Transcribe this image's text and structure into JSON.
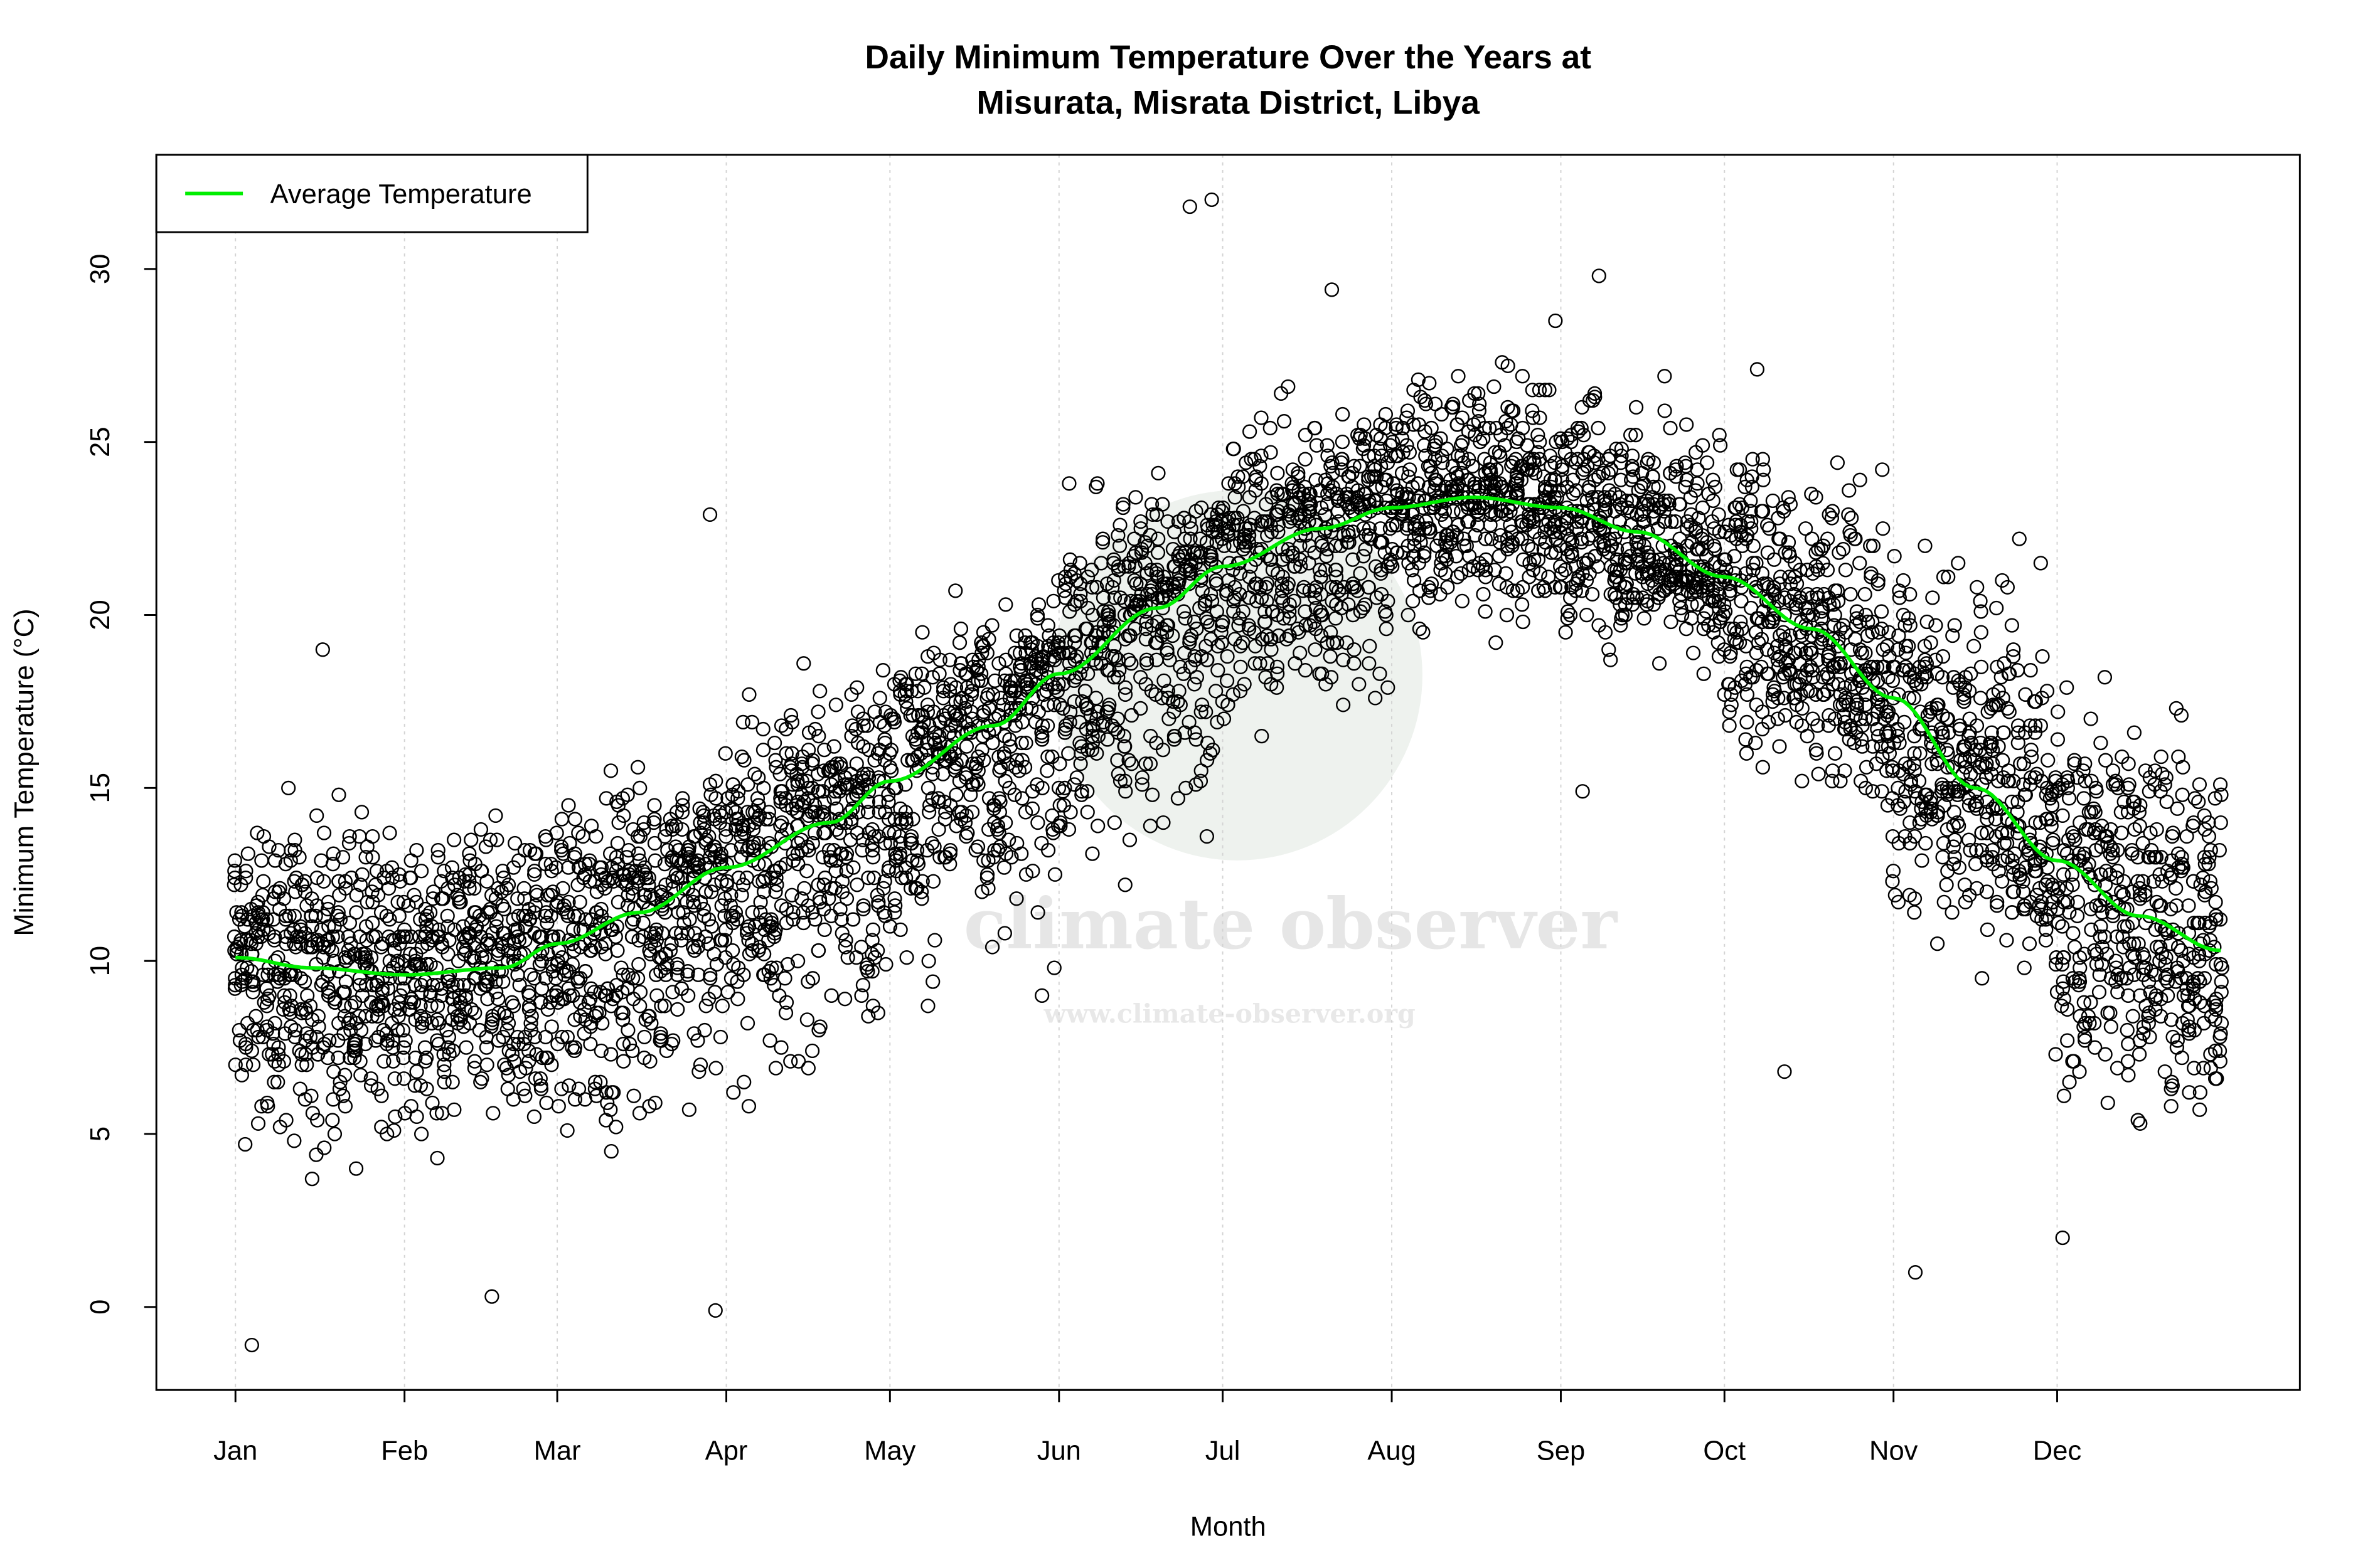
{
  "chart_data": {
    "type": "scatter",
    "title_line1": "Daily Minimum Temperature Over the Years at",
    "title_line2": "Misurata, Misrata District, Libya",
    "xlabel": "Month",
    "ylabel": "Minimum Temperature (°C)",
    "x_unit": "day of year",
    "xlim": [
      -13.5,
      379.5
    ],
    "ylim": [
      -2.4,
      33.3
    ],
    "grid": "vertical dotted at month ticks",
    "x_ticks": [
      {
        "label": "Jan",
        "day": 1
      },
      {
        "label": "Feb",
        "day": 32
      },
      {
        "label": "Mar",
        "day": 60
      },
      {
        "label": "Apr",
        "day": 91
      },
      {
        "label": "May",
        "day": 121
      },
      {
        "label": "Jun",
        "day": 152
      },
      {
        "label": "Jul",
        "day": 182
      },
      {
        "label": "Aug",
        "day": 213
      },
      {
        "label": "Sep",
        "day": 244
      },
      {
        "label": "Oct",
        "day": 274
      },
      {
        "label": "Nov",
        "day": 305
      },
      {
        "label": "Dec",
        "day": 335
      }
    ],
    "y_ticks": [
      0,
      5,
      10,
      15,
      20,
      25,
      30
    ],
    "legend": {
      "placement": "top-left",
      "entries": [
        {
          "label": "Average Temperature",
          "color": "#00ee00"
        }
      ]
    },
    "average_line": {
      "name": "Average Temperature",
      "color": "#00ee00",
      "x": [
        1,
        15,
        32,
        50,
        60,
        75,
        91,
        110,
        121,
        140,
        152,
        170,
        182,
        200,
        213,
        228,
        244,
        258,
        274,
        290,
        305,
        320,
        335,
        350,
        365
      ],
      "y": [
        10.1,
        9.8,
        9.6,
        9.8,
        10.5,
        11.4,
        12.7,
        14.0,
        15.2,
        16.8,
        18.3,
        20.2,
        21.4,
        22.5,
        23.1,
        23.4,
        23.1,
        22.4,
        21.1,
        19.6,
        17.6,
        15.0,
        12.9,
        11.3,
        10.3
      ]
    },
    "scatter_marker": "open circle, black",
    "scatter_typical_range_by_month": {
      "months": [
        "Jan",
        "Feb",
        "Mar",
        "Apr",
        "May",
        "Jun",
        "Jul",
        "Aug",
        "Sep",
        "Oct",
        "Nov",
        "Dec"
      ],
      "low": [
        3,
        3,
        3,
        5,
        8,
        11,
        15,
        19,
        18,
        14,
        9,
        4
      ],
      "high": [
        15.5,
        15,
        16.5,
        19,
        21,
        25,
        27,
        28,
        27.5,
        26,
        23,
        19
      ]
    },
    "notable_points": [
      {
        "x": 4,
        "y": -1.1
      },
      {
        "x": 89,
        "y": -0.1
      },
      {
        "x": 48,
        "y": 0.3
      },
      {
        "x": 17,
        "y": 19.0
      },
      {
        "x": 88,
        "y": 22.9
      },
      {
        "x": 176,
        "y": 31.8
      },
      {
        "x": 180,
        "y": 32.0
      },
      {
        "x": 202,
        "y": 29.4
      },
      {
        "x": 251,
        "y": 29.8
      },
      {
        "x": 248,
        "y": 14.9
      },
      {
        "x": 309,
        "y": 1.0
      },
      {
        "x": 285,
        "y": 6.8
      },
      {
        "x": 332,
        "y": 21.5
      },
      {
        "x": 336,
        "y": 2.0
      },
      {
        "x": 243,
        "y": 28.5
      },
      {
        "x": 280,
        "y": 27.1
      }
    ]
  },
  "watermark": {
    "name": "climate observer",
    "url": "www.climate-observer.org"
  }
}
